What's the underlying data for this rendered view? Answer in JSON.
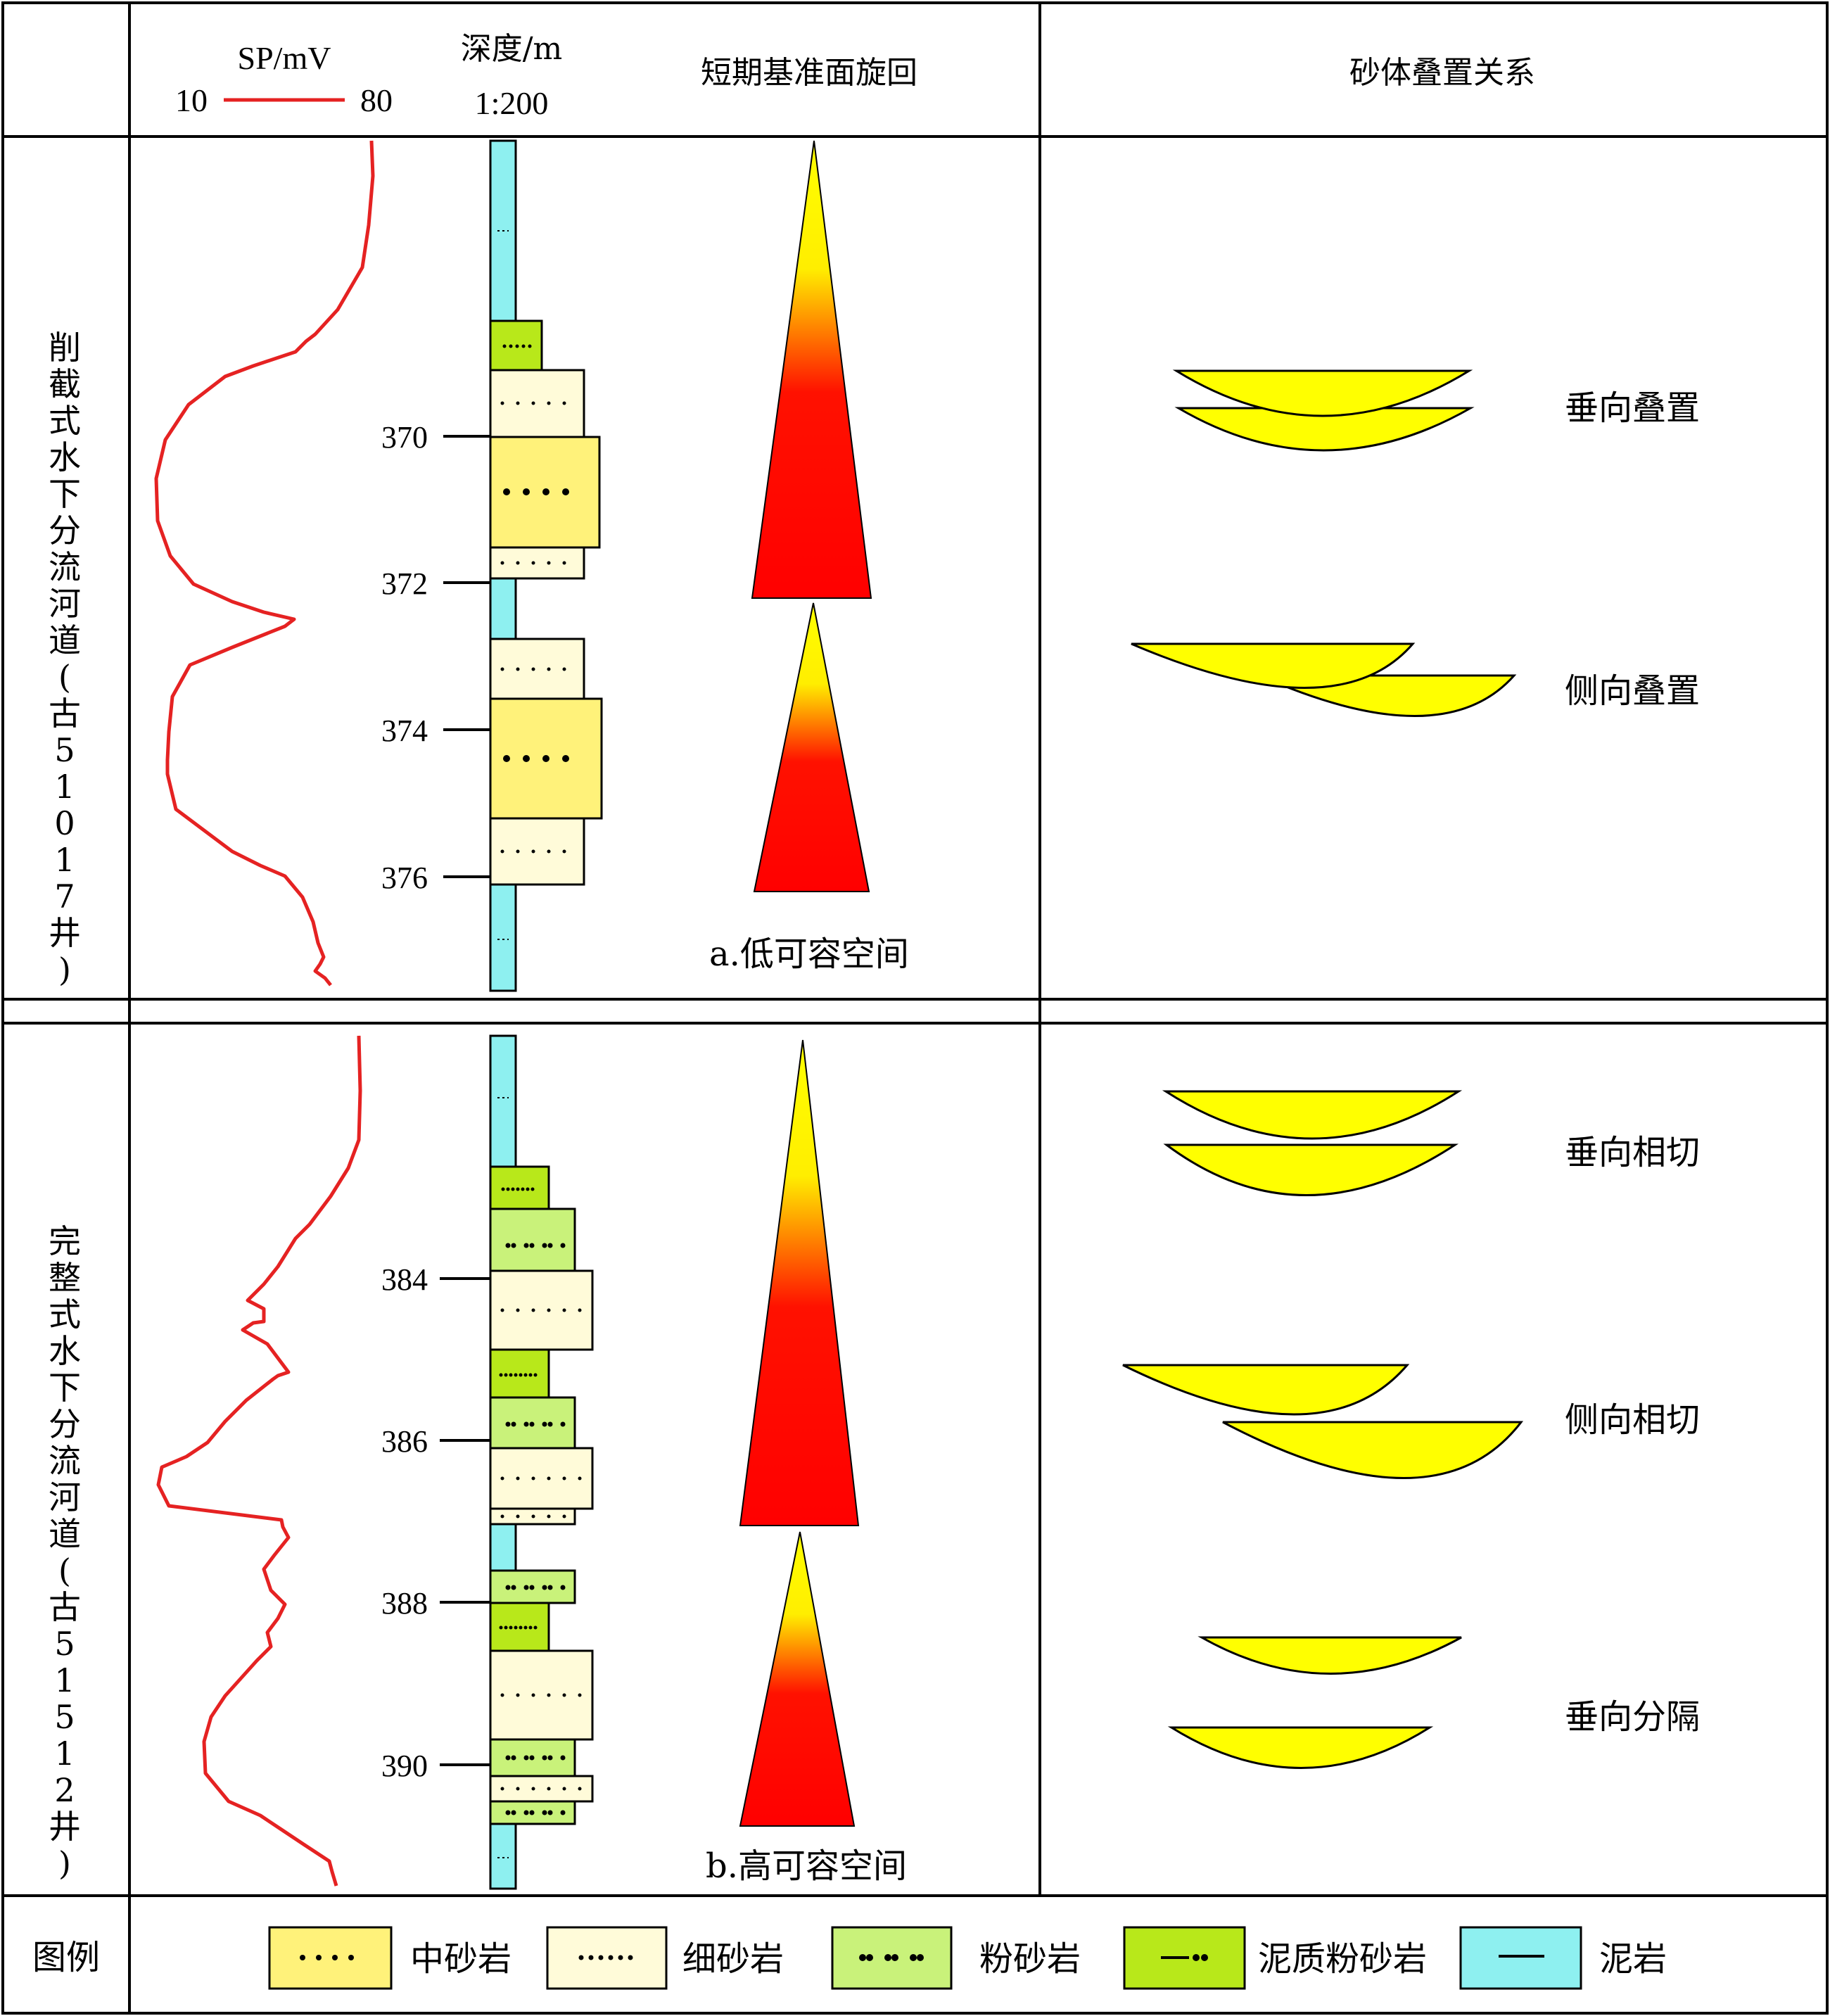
{
  "header": {
    "sp_label": "SP/mV",
    "sp_min": "10",
    "sp_max": "80",
    "depth_label": "深度/m",
    "scale_label": "1:200",
    "cycle_label": "短期基准面旋回",
    "sand_label": "砂体叠置关系"
  },
  "panels": [
    {
      "side_label": "削截式水下分流河道(古51017井)",
      "depth_ticks": [
        "370",
        "372",
        "374",
        "376"
      ],
      "caption": "a.低可容空间",
      "relations": [
        "垂向叠置",
        "侧向叠置"
      ]
    },
    {
      "side_label": "完整式水下分流河道(古5151​2井)",
      "depth_ticks": [
        "384",
        "386",
        "388",
        "390"
      ],
      "caption": "b.高可容空间",
      "relations": [
        "垂向相切",
        "侧向相切",
        "垂向分隔"
      ]
    }
  ],
  "legend": {
    "title": "图例",
    "items": [
      "中砂岩",
      "细砂岩",
      "粉砂岩",
      "泥质粉砂岩",
      "泥岩"
    ]
  },
  "colors": {
    "sp_curve": "#e52222",
    "medium_sand": "#fff27a",
    "fine_sand": "#fffbd9",
    "siltstone": "#c9f27a",
    "muddy_silt": "#b8e81a",
    "mudstone": "#8ef0f0",
    "lens": "#ffff00",
    "cycle_top": "#ffff00",
    "cycle_base": "#ff0000"
  }
}
